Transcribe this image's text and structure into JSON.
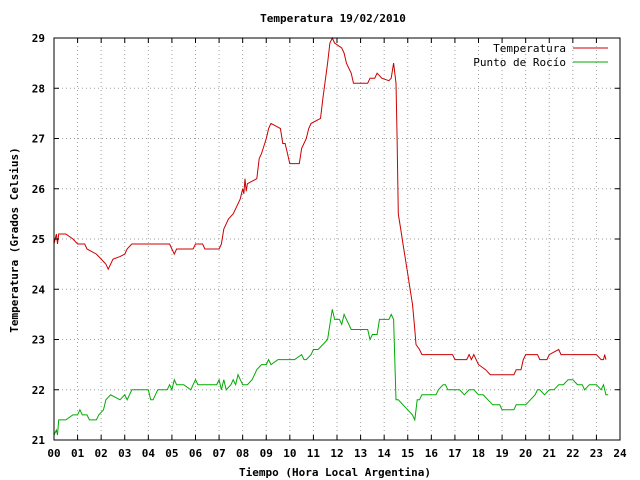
{
  "chart_data": {
    "type": "line",
    "title": "Temperatura 19/02/2010",
    "xlabel": "Tiempo (Hora Local Argentina)",
    "ylabel": "Temperatura (Grados Celsius)",
    "xlim": [
      0,
      24
    ],
    "ylim": [
      21,
      29
    ],
    "grid": true,
    "legend_position": "top-right",
    "x_ticks": [
      "00",
      "01",
      "02",
      "03",
      "04",
      "05",
      "06",
      "07",
      "08",
      "09",
      "10",
      "11",
      "12",
      "13",
      "14",
      "15",
      "16",
      "17",
      "18",
      "19",
      "20",
      "21",
      "22",
      "23",
      "24"
    ],
    "y_ticks": [
      "21",
      "22",
      "23",
      "24",
      "25",
      "26",
      "27",
      "28",
      "29"
    ],
    "series": [
      {
        "name": "Temperatura",
        "color": "#cc0000",
        "points": [
          [
            0.0,
            24.9
          ],
          [
            0.1,
            25.1
          ],
          [
            0.15,
            24.9
          ],
          [
            0.2,
            25.1
          ],
          [
            0.5,
            25.1
          ],
          [
            0.8,
            25.0
          ],
          [
            1.0,
            24.9
          ],
          [
            1.3,
            24.9
          ],
          [
            1.4,
            24.8
          ],
          [
            1.8,
            24.7
          ],
          [
            2.0,
            24.6
          ],
          [
            2.2,
            24.5
          ],
          [
            2.3,
            24.4
          ],
          [
            2.5,
            24.6
          ],
          [
            2.8,
            24.65
          ],
          [
            3.0,
            24.7
          ],
          [
            3.1,
            24.8
          ],
          [
            3.3,
            24.9
          ],
          [
            4.0,
            24.9
          ],
          [
            4.5,
            24.9
          ],
          [
            4.9,
            24.9
          ],
          [
            5.0,
            24.8
          ],
          [
            5.1,
            24.7
          ],
          [
            5.2,
            24.8
          ],
          [
            5.5,
            24.8
          ],
          [
            5.9,
            24.8
          ],
          [
            6.0,
            24.9
          ],
          [
            6.3,
            24.9
          ],
          [
            6.4,
            24.8
          ],
          [
            6.8,
            24.8
          ],
          [
            7.0,
            24.8
          ],
          [
            7.1,
            24.9
          ],
          [
            7.2,
            25.2
          ],
          [
            7.4,
            25.4
          ],
          [
            7.6,
            25.5
          ],
          [
            7.8,
            25.7
          ],
          [
            7.9,
            25.8
          ],
          [
            8.0,
            26.0
          ],
          [
            8.05,
            25.9
          ],
          [
            8.1,
            26.2
          ],
          [
            8.15,
            25.95
          ],
          [
            8.2,
            26.1
          ],
          [
            8.4,
            26.15
          ],
          [
            8.6,
            26.2
          ],
          [
            8.7,
            26.6
          ],
          [
            8.8,
            26.7
          ],
          [
            9.0,
            27.0
          ],
          [
            9.1,
            27.2
          ],
          [
            9.2,
            27.3
          ],
          [
            9.6,
            27.2
          ],
          [
            9.7,
            26.9
          ],
          [
            9.8,
            26.9
          ],
          [
            9.9,
            26.7
          ],
          [
            10.0,
            26.5
          ],
          [
            10.3,
            26.5
          ],
          [
            10.4,
            26.5
          ],
          [
            10.5,
            26.8
          ],
          [
            10.7,
            27.0
          ],
          [
            10.8,
            27.2
          ],
          [
            10.9,
            27.3
          ],
          [
            11.3,
            27.4
          ],
          [
            11.4,
            27.8
          ],
          [
            11.6,
            28.5
          ],
          [
            11.7,
            28.9
          ],
          [
            11.8,
            29.0
          ],
          [
            11.9,
            28.9
          ],
          [
            12.2,
            28.8
          ],
          [
            12.3,
            28.7
          ],
          [
            12.4,
            28.5
          ],
          [
            12.6,
            28.3
          ],
          [
            12.7,
            28.1
          ],
          [
            12.8,
            28.1
          ],
          [
            13.3,
            28.1
          ],
          [
            13.4,
            28.2
          ],
          [
            13.6,
            28.2
          ],
          [
            13.7,
            28.3
          ],
          [
            13.8,
            28.25
          ],
          [
            13.9,
            28.2
          ],
          [
            14.2,
            28.15
          ],
          [
            14.3,
            28.2
          ],
          [
            14.4,
            28.5
          ],
          [
            14.5,
            28.1
          ],
          [
            14.55,
            27.0
          ],
          [
            14.6,
            25.5
          ],
          [
            14.7,
            25.2
          ],
          [
            14.8,
            24.9
          ],
          [
            14.9,
            24.6
          ],
          [
            15.0,
            24.3
          ],
          [
            15.1,
            24.0
          ],
          [
            15.2,
            23.7
          ],
          [
            15.3,
            23.2
          ],
          [
            15.35,
            22.9
          ],
          [
            15.5,
            22.8
          ],
          [
            15.6,
            22.7
          ],
          [
            16.0,
            22.7
          ],
          [
            16.5,
            22.7
          ],
          [
            16.9,
            22.7
          ],
          [
            17.0,
            22.6
          ],
          [
            17.5,
            22.6
          ],
          [
            17.6,
            22.7
          ],
          [
            17.7,
            22.6
          ],
          [
            17.8,
            22.7
          ],
          [
            18.0,
            22.5
          ],
          [
            18.3,
            22.4
          ],
          [
            18.5,
            22.3
          ],
          [
            19.0,
            22.3
          ],
          [
            19.5,
            22.3
          ],
          [
            19.6,
            22.4
          ],
          [
            19.8,
            22.4
          ],
          [
            19.9,
            22.6
          ],
          [
            20.0,
            22.7
          ],
          [
            20.5,
            22.7
          ],
          [
            20.6,
            22.6
          ],
          [
            20.9,
            22.6
          ],
          [
            21.0,
            22.7
          ],
          [
            21.4,
            22.8
          ],
          [
            21.5,
            22.7
          ],
          [
            22.0,
            22.7
          ],
          [
            22.5,
            22.7
          ],
          [
            23.0,
            22.7
          ],
          [
            23.2,
            22.6
          ],
          [
            23.3,
            22.6
          ],
          [
            23.35,
            22.7
          ],
          [
            23.4,
            22.6
          ]
        ]
      },
      {
        "name": "Punto de Rocío",
        "color": "#00aa00",
        "points": [
          [
            0.0,
            21.1
          ],
          [
            0.1,
            21.2
          ],
          [
            0.15,
            21.1
          ],
          [
            0.2,
            21.4
          ],
          [
            0.5,
            21.4
          ],
          [
            0.8,
            21.5
          ],
          [
            1.0,
            21.5
          ],
          [
            1.1,
            21.6
          ],
          [
            1.2,
            21.5
          ],
          [
            1.4,
            21.5
          ],
          [
            1.5,
            21.4
          ],
          [
            1.8,
            21.4
          ],
          [
            1.9,
            21.5
          ],
          [
            2.1,
            21.6
          ],
          [
            2.2,
            21.8
          ],
          [
            2.4,
            21.9
          ],
          [
            2.6,
            21.85
          ],
          [
            2.8,
            21.8
          ],
          [
            3.0,
            21.9
          ],
          [
            3.1,
            21.8
          ],
          [
            3.2,
            21.9
          ],
          [
            3.3,
            22.0
          ],
          [
            3.5,
            22.0
          ],
          [
            4.0,
            22.0
          ],
          [
            4.1,
            21.8
          ],
          [
            4.2,
            21.8
          ],
          [
            4.3,
            21.9
          ],
          [
            4.4,
            22.0
          ],
          [
            4.6,
            22.0
          ],
          [
            4.8,
            22.0
          ],
          [
            4.9,
            22.1
          ],
          [
            5.0,
            22.0
          ],
          [
            5.1,
            22.2
          ],
          [
            5.2,
            22.1
          ],
          [
            5.5,
            22.1
          ],
          [
            5.8,
            22.0
          ],
          [
            5.9,
            22.1
          ],
          [
            6.0,
            22.2
          ],
          [
            6.1,
            22.1
          ],
          [
            6.3,
            22.1
          ],
          [
            6.5,
            22.1
          ],
          [
            6.9,
            22.1
          ],
          [
            7.0,
            22.2
          ],
          [
            7.1,
            22.0
          ],
          [
            7.2,
            22.2
          ],
          [
            7.3,
            22.0
          ],
          [
            7.5,
            22.1
          ],
          [
            7.6,
            22.2
          ],
          [
            7.7,
            22.1
          ],
          [
            7.8,
            22.3
          ],
          [
            7.9,
            22.2
          ],
          [
            8.0,
            22.1
          ],
          [
            8.1,
            22.1
          ],
          [
            8.2,
            22.1
          ],
          [
            8.4,
            22.2
          ],
          [
            8.5,
            22.3
          ],
          [
            8.6,
            22.4
          ],
          [
            8.8,
            22.5
          ],
          [
            9.0,
            22.5
          ],
          [
            9.1,
            22.6
          ],
          [
            9.2,
            22.5
          ],
          [
            9.5,
            22.6
          ],
          [
            9.8,
            22.6
          ],
          [
            10.0,
            22.6
          ],
          [
            10.2,
            22.6
          ],
          [
            10.5,
            22.7
          ],
          [
            10.6,
            22.6
          ],
          [
            10.7,
            22.6
          ],
          [
            10.9,
            22.7
          ],
          [
            11.0,
            22.8
          ],
          [
            11.2,
            22.8
          ],
          [
            11.4,
            22.9
          ],
          [
            11.6,
            23.0
          ],
          [
            11.7,
            23.3
          ],
          [
            11.8,
            23.6
          ],
          [
            11.9,
            23.4
          ],
          [
            12.0,
            23.4
          ],
          [
            12.1,
            23.4
          ],
          [
            12.2,
            23.3
          ],
          [
            12.3,
            23.5
          ],
          [
            12.4,
            23.4
          ],
          [
            12.5,
            23.3
          ],
          [
            12.6,
            23.2
          ],
          [
            13.0,
            23.2
          ],
          [
            13.3,
            23.2
          ],
          [
            13.4,
            23.0
          ],
          [
            13.5,
            23.1
          ],
          [
            13.7,
            23.1
          ],
          [
            13.8,
            23.4
          ],
          [
            14.0,
            23.4
          ],
          [
            14.2,
            23.4
          ],
          [
            14.3,
            23.5
          ],
          [
            14.4,
            23.4
          ],
          [
            14.45,
            22.6
          ],
          [
            14.5,
            21.8
          ],
          [
            14.6,
            21.8
          ],
          [
            14.8,
            21.7
          ],
          [
            15.0,
            21.6
          ],
          [
            15.2,
            21.5
          ],
          [
            15.3,
            21.4
          ],
          [
            15.4,
            21.8
          ],
          [
            15.5,
            21.8
          ],
          [
            15.6,
            21.9
          ],
          [
            16.0,
            21.9
          ],
          [
            16.2,
            21.9
          ],
          [
            16.3,
            22.0
          ],
          [
            16.5,
            22.1
          ],
          [
            16.6,
            22.1
          ],
          [
            16.7,
            22.0
          ],
          [
            17.0,
            22.0
          ],
          [
            17.2,
            22.0
          ],
          [
            17.4,
            21.9
          ],
          [
            17.6,
            22.0
          ],
          [
            17.8,
            22.0
          ],
          [
            18.0,
            21.9
          ],
          [
            18.2,
            21.9
          ],
          [
            18.4,
            21.8
          ],
          [
            18.6,
            21.7
          ],
          [
            18.9,
            21.7
          ],
          [
            19.0,
            21.6
          ],
          [
            19.1,
            21.6
          ],
          [
            19.5,
            21.6
          ],
          [
            19.6,
            21.7
          ],
          [
            20.0,
            21.7
          ],
          [
            20.2,
            21.8
          ],
          [
            20.4,
            21.9
          ],
          [
            20.5,
            22.0
          ],
          [
            20.6,
            22.0
          ],
          [
            20.8,
            21.9
          ],
          [
            21.0,
            22.0
          ],
          [
            21.2,
            22.0
          ],
          [
            21.4,
            22.1
          ],
          [
            21.6,
            22.1
          ],
          [
            21.8,
            22.2
          ],
          [
            22.0,
            22.2
          ],
          [
            22.2,
            22.1
          ],
          [
            22.4,
            22.1
          ],
          [
            22.5,
            22.0
          ],
          [
            22.7,
            22.1
          ],
          [
            23.0,
            22.1
          ],
          [
            23.2,
            22.0
          ],
          [
            23.3,
            22.1
          ],
          [
            23.4,
            21.9
          ],
          [
            23.5,
            21.9
          ]
        ]
      }
    ]
  }
}
